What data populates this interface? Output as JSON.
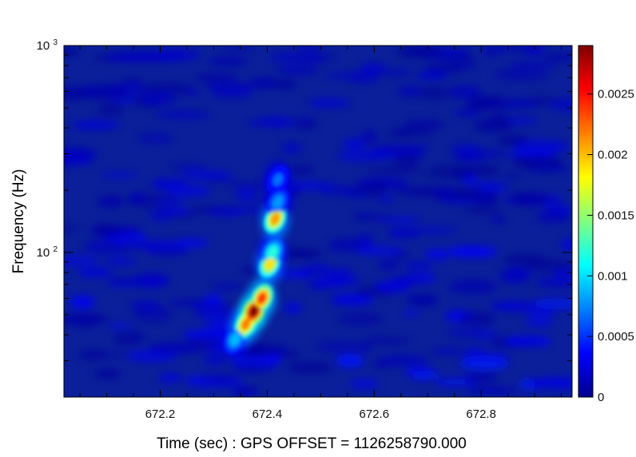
{
  "chart_data": {
    "type": "heatmap",
    "title": "",
    "xlabel": "Time (sec) : GPS OFFSET = 1126258790.000",
    "ylabel": "Frequency (Hz)",
    "xlim": [
      672.02,
      672.97
    ],
    "ylim": [
      20,
      1000
    ],
    "y_scale": "log",
    "x_ticks": [
      {
        "value": 672.2,
        "label": "672.2"
      },
      {
        "value": 672.4,
        "label": "672.4"
      },
      {
        "value": 672.6,
        "label": "672.6"
      },
      {
        "value": 672.8,
        "label": "672.8"
      }
    ],
    "y_ticks": [
      {
        "value": 100,
        "base": "10",
        "exp": "2"
      },
      {
        "value": 1000,
        "base": "10",
        "exp": "3"
      }
    ],
    "colorbar": {
      "range": [
        0,
        0.0029
      ],
      "ticks": [
        {
          "value": 0,
          "label": "0"
        },
        {
          "value": 0.0005,
          "label": "0.0005"
        },
        {
          "value": 0.001,
          "label": "0.001"
        },
        {
          "value": 0.0015,
          "label": "0.0015"
        },
        {
          "value": 0.002,
          "label": "0.002"
        },
        {
          "value": 0.0025,
          "label": "0.0025"
        }
      ],
      "colormap": "jet"
    },
    "background_level": 0.00018,
    "chirp_track": [
      {
        "t": 672.34,
        "f": 38,
        "v": 0.0009
      },
      {
        "t": 672.36,
        "f": 45,
        "v": 0.0022
      },
      {
        "t": 672.375,
        "f": 52,
        "v": 0.0029
      },
      {
        "t": 672.39,
        "f": 60,
        "v": 0.0024
      },
      {
        "t": 672.405,
        "f": 88,
        "v": 0.0019
      },
      {
        "t": 672.41,
        "f": 100,
        "v": 0.0012
      },
      {
        "t": 672.415,
        "f": 145,
        "v": 0.0021
      },
      {
        "t": 672.42,
        "f": 175,
        "v": 0.0008
      },
      {
        "t": 672.42,
        "f": 225,
        "v": 0.0007
      }
    ]
  }
}
